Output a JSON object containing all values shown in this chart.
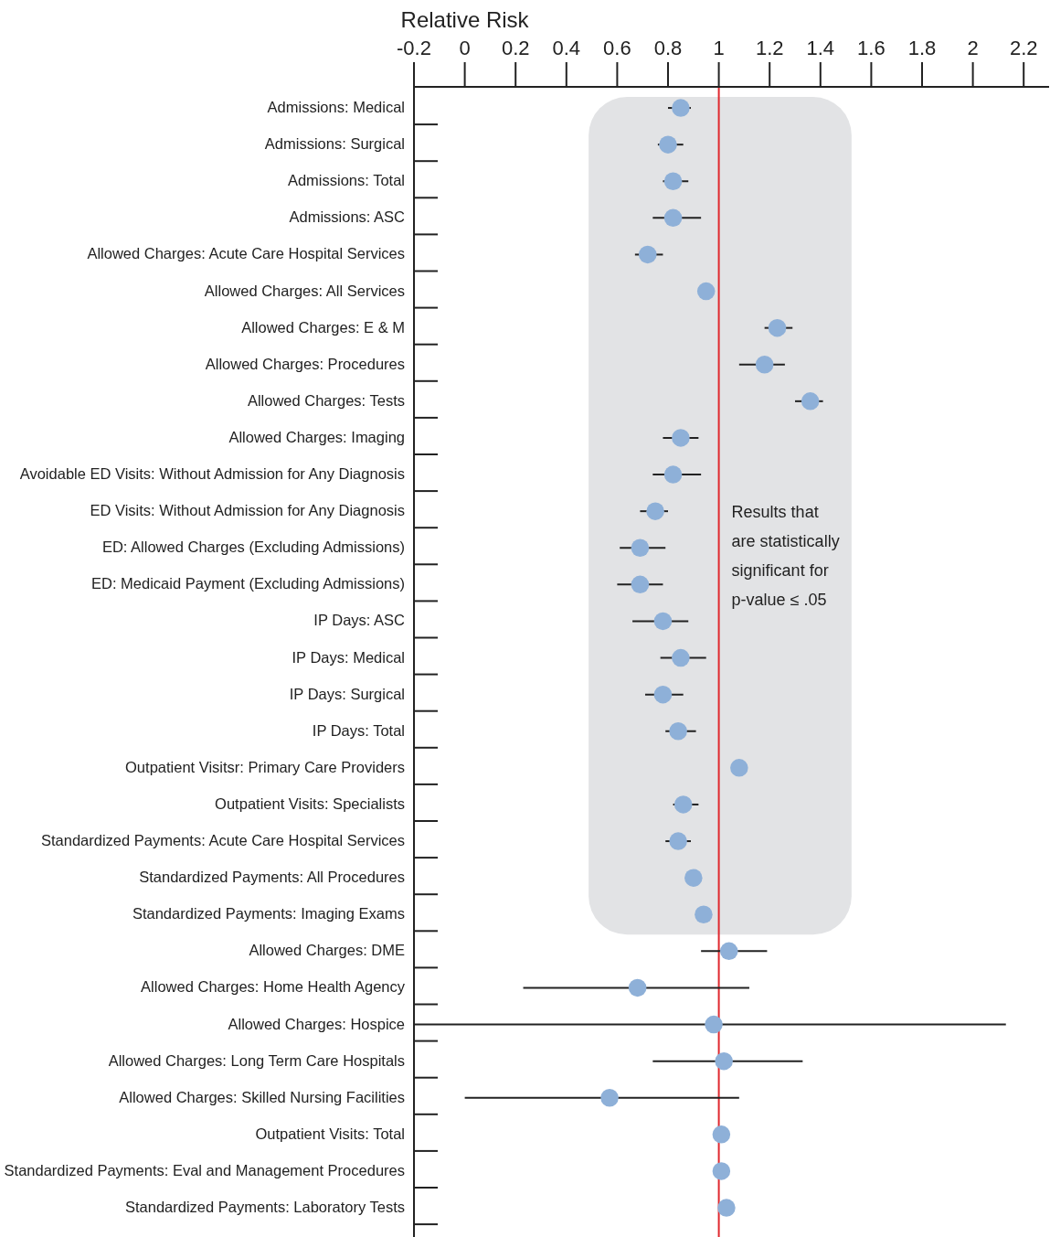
{
  "chart_data": {
    "type": "scatter",
    "orientation": "horizontal",
    "xlabel": "Relative Risk",
    "categories": [
      "Admissions: Medical",
      "Admissions: Surgical",
      "Admissions: Total",
      "Admissions: ASC",
      "Allowed Charges: Acute Care Hospital Services",
      "Allowed Charges: All Services",
      "Allowed Charges: E & M",
      "Allowed Charges: Procedures",
      "Allowed Charges: Tests",
      "Allowed Charges: Imaging",
      "Avoidable ED Visits: Without Admission for Any Diagnosis",
      "ED Visits: Without Admission for Any Diagnosis",
      "ED: Allowed Charges (Excluding Admissions)",
      "ED: Medicaid Payment (Excluding Admissions)",
      "IP Days: ASC",
      "IP Days: Medical",
      "IP Days: Surgical",
      "IP Days: Total",
      "Outpatient Visitsr: Primary Care Providers",
      "Outpatient Visits: Specialists",
      "Standardized Payments: Acute Care Hospital Services",
      "Standardized Payments: All Procedures",
      "Standardized Payments: Imaging Exams",
      "Allowed Charges: DME",
      "Allowed Charges: Home Health Agency",
      "Allowed Charges: Hospice",
      "Allowed Charges: Long Term Care Hospitals",
      "Allowed Charges: Skilled Nursing Facilities",
      "Outpatient Visits: Total",
      "Standardized Payments: Eval and Management Procedures",
      "Standardized Payments: Laboratory Tests"
    ],
    "series": [
      {
        "color": "#8eb0d8",
        "values": [
          0.85,
          0.8,
          0.82,
          0.82,
          0.72,
          0.95,
          1.23,
          1.18,
          1.36,
          0.85,
          0.82,
          0.75,
          0.69,
          0.69,
          0.78,
          0.85,
          0.78,
          0.84,
          1.08,
          0.86,
          0.84,
          0.9,
          0.94,
          1.04,
          0.68,
          0.98,
          1.02,
          0.57,
          1.01,
          1.01,
          1.03
        ],
        "errors": [
          [
            0.8,
            0.89
          ],
          [
            0.76,
            0.86
          ],
          [
            0.78,
            0.88
          ],
          [
            0.74,
            0.93
          ],
          [
            0.67,
            0.78
          ],
          null,
          [
            1.18,
            1.29
          ],
          [
            1.08,
            1.26
          ],
          [
            1.3,
            1.41
          ],
          [
            0.78,
            0.92
          ],
          [
            0.74,
            0.93
          ],
          [
            0.69,
            0.8
          ],
          [
            0.61,
            0.79
          ],
          [
            0.6,
            0.78
          ],
          [
            0.66,
            0.88
          ],
          [
            0.77,
            0.95
          ],
          [
            0.71,
            0.86
          ],
          [
            0.79,
            0.91
          ],
          null,
          [
            0.82,
            0.92
          ],
          [
            0.79,
            0.89
          ],
          null,
          null,
          [
            0.93,
            1.19
          ],
          [
            0.23,
            1.12
          ],
          [
            -0.2,
            2.13
          ],
          [
            0.74,
            1.33
          ],
          [
            0.0,
            1.08
          ],
          null,
          null,
          null
        ]
      }
    ],
    "xlim": [
      -0.2,
      2.3
    ],
    "xticks": [
      {
        "value": -0.2,
        "label": "-0.2"
      },
      0,
      0.2,
      0.4,
      0.6,
      0.8,
      1,
      1.2,
      1.4,
      1.6,
      1.8,
      2,
      2.2
    ],
    "marker": "circle",
    "grid": false,
    "ref_lines": [
      {
        "axis": "x",
        "value": 1,
        "color": "#e0282e"
      }
    ],
    "bands": [
      {
        "axis": "y",
        "from": "Admissions: Medical",
        "to": "Standardized Payments: Imaging Exams",
        "label": "Results that are statistically significant for p-value ≤ .05",
        "color": "#e2e3e5"
      }
    ]
  }
}
